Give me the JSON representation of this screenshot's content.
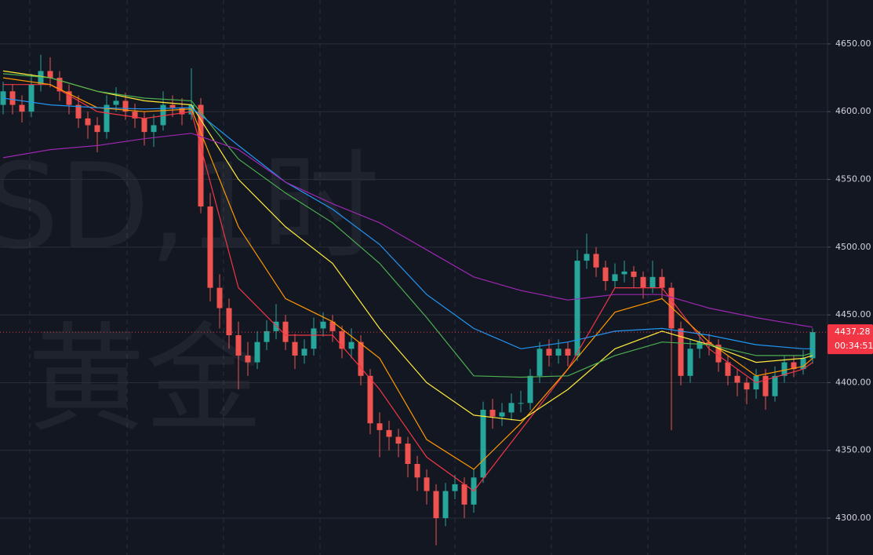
{
  "chart_data": {
    "type": "candlestick",
    "watermark": [
      "SD,1时",
      "黄金"
    ],
    "ylim": [
      4272.8,
      4682.4
    ],
    "yticks": [
      {
        "value": 4650,
        "label": "4650.00"
      },
      {
        "value": 4600,
        "label": "4600.00"
      },
      {
        "value": 4550,
        "label": "4550.00"
      },
      {
        "value": 4500,
        "label": "4500.00"
      },
      {
        "value": 4450,
        "label": "4450.00"
      },
      {
        "value": 4400,
        "label": "4400.00"
      },
      {
        "value": 4350,
        "label": "4350.00"
      },
      {
        "value": 4300,
        "label": "4300.00"
      }
    ],
    "grid": true,
    "up_color": "#26a69a",
    "down_color": "#ef5350",
    "open": [
      4605,
      4615,
      4605,
      4600,
      4620,
      4630,
      4625,
      4615,
      4605,
      4595,
      4590,
      4585,
      4605,
      4608,
      4600,
      4595,
      4585,
      4590,
      4605,
      4603,
      4598,
      4605,
      4530,
      4470,
      4455,
      4435,
      4420,
      4415,
      4430,
      4438,
      4445,
      4430,
      4420,
      4425,
      4440,
      4445,
      4438,
      4425,
      4430,
      4405,
      4370,
      4365,
      4360,
      4355,
      4340,
      4330,
      4320,
      4300,
      4320,
      4325,
      4310,
      4330,
      4380,
      4375,
      4378,
      4385,
      4385,
      4405,
      4425,
      4420,
      4425,
      4420,
      4490,
      4495,
      4485,
      4475,
      4480,
      4482,
      4478,
      4470,
      4478,
      4470,
      4440,
      4405,
      4425,
      4430,
      4428,
      4415,
      4405,
      4400,
      4395,
      4405,
      4390,
      4405,
      4415,
      4410,
      4418
    ],
    "high": [
      4622,
      4620,
      4612,
      4628,
      4642,
      4640,
      4630,
      4620,
      4612,
      4600,
      4596,
      4612,
      4618,
      4614,
      4606,
      4600,
      4598,
      4615,
      4612,
      4610,
      4632,
      4610,
      4540,
      4480,
      4462,
      4445,
      4430,
      4438,
      4446,
      4458,
      4450,
      4436,
      4432,
      4448,
      4452,
      4450,
      4442,
      4440,
      4435,
      4410,
      4378,
      4372,
      4366,
      4360,
      4346,
      4336,
      4325,
      4326,
      4332,
      4330,
      4336,
      4386,
      4388,
      4385,
      4392,
      4394,
      4410,
      4430,
      4432,
      4432,
      4430,
      4498,
      4510,
      4500,
      4490,
      4488,
      4490,
      4486,
      4482,
      4490,
      4484,
      4474,
      4445,
      4432,
      4438,
      4436,
      4432,
      4420,
      4410,
      4404,
      4410,
      4410,
      4412,
      4420,
      4420,
      4424,
      4440
    ],
    "low": [
      4598,
      4598,
      4592,
      4596,
      4615,
      4618,
      4608,
      4598,
      4588,
      4580,
      4570,
      4580,
      4600,
      4594,
      4588,
      4575,
      4574,
      4586,
      4596,
      4590,
      4594,
      4525,
      4460,
      4440,
      4425,
      4395,
      4405,
      4410,
      4424,
      4432,
      4424,
      4410,
      4414,
      4420,
      4434,
      4430,
      4418,
      4418,
      4398,
      4362,
      4345,
      4350,
      4345,
      4330,
      4320,
      4310,
      4280,
      4294,
      4314,
      4300,
      4304,
      4326,
      4366,
      4368,
      4372,
      4378,
      4380,
      4400,
      4412,
      4414,
      4412,
      4416,
      4484,
      4478,
      4468,
      4470,
      4474,
      4470,
      4462,
      4466,
      4462,
      4365,
      4398,
      4400,
      4418,
      4420,
      4408,
      4398,
      4390,
      4384,
      4388,
      4380,
      4386,
      4400,
      4404,
      4406,
      4414
    ],
    "close": [
      4615,
      4605,
      4600,
      4620,
      4630,
      4625,
      4615,
      4605,
      4595,
      4590,
      4585,
      4605,
      4608,
      4600,
      4595,
      4585,
      4590,
      4605,
      4603,
      4598,
      4605,
      4530,
      4470,
      4455,
      4435,
      4420,
      4415,
      4430,
      4438,
      4445,
      4430,
      4420,
      4425,
      4440,
      4445,
      4438,
      4425,
      4430,
      4405,
      4370,
      4365,
      4360,
      4355,
      4340,
      4330,
      4320,
      4300,
      4320,
      4325,
      4310,
      4330,
      4380,
      4375,
      4378,
      4385,
      4385,
      4405,
      4425,
      4420,
      4425,
      4420,
      4490,
      4495,
      4485,
      4475,
      4480,
      4482,
      4478,
      4470,
      4478,
      4470,
      4440,
      4405,
      4425,
      4430,
      4428,
      4415,
      4405,
      4400,
      4395,
      4405,
      4390,
      4405,
      4415,
      4410,
      4418,
      4437.28
    ],
    "series": [
      {
        "color": "#f23645",
        "x": [
          0,
          5,
          10,
          15,
          20,
          25,
          30,
          35,
          40,
          45,
          50,
          55,
          60,
          65,
          70,
          75,
          80,
          85,
          86
        ],
        "values": [
          4620,
          4620,
          4600,
          4595,
          4600,
          4470,
          4435,
          4435,
          4395,
          4345,
          4320,
          4365,
          4410,
          4470,
          4470,
          4425,
          4400,
          4410,
          4415
        ]
      },
      {
        "color": "#ff9800",
        "x": [
          0,
          5,
          10,
          15,
          20,
          25,
          30,
          35,
          40,
          45,
          50,
          55,
          60,
          65,
          70,
          75,
          80,
          85,
          86
        ],
        "values": [
          4625,
          4620,
          4603,
          4600,
          4602,
          4515,
          4462,
          4445,
          4418,
          4358,
          4336,
          4370,
          4410,
          4452,
          4462,
          4430,
          4405,
          4412,
          4418
        ]
      },
      {
        "color": "#ffeb3b",
        "x": [
          0,
          5,
          10,
          15,
          20,
          25,
          30,
          35,
          40,
          45,
          50,
          55,
          60,
          65,
          70,
          75,
          80,
          85,
          86
        ],
        "values": [
          4630,
          4625,
          4615,
          4608,
          4605,
          4550,
          4515,
          4488,
          4440,
          4400,
          4376,
          4372,
          4395,
          4425,
          4438,
          4428,
          4415,
          4418,
          4420
        ]
      },
      {
        "color": "#4caf50",
        "x": [
          0,
          5,
          10,
          15,
          20,
          25,
          30,
          35,
          40,
          45,
          50,
          55,
          60,
          65,
          70,
          75,
          80,
          85,
          86
        ],
        "values": [
          4628,
          4625,
          4615,
          4610,
          4608,
          4565,
          4540,
          4518,
          4488,
          4448,
          4405,
          4404,
          4405,
          4420,
          4430,
          4428,
          4420,
          4420,
          4422
        ]
      },
      {
        "color": "#2196f3",
        "x": [
          0,
          5,
          10,
          15,
          20,
          25,
          30,
          35,
          40,
          45,
          50,
          55,
          60,
          65,
          70,
          75,
          80,
          85,
          86
        ],
        "values": [
          4610,
          4605,
          4603,
          4602,
          4603,
          4575,
          4548,
          4528,
          4502,
          4465,
          4440,
          4425,
          4430,
          4438,
          4440,
          4435,
          4428,
          4425,
          4425
        ]
      },
      {
        "color": "#9c27b0",
        "x": [
          0,
          5,
          10,
          15,
          20,
          25,
          30,
          35,
          40,
          45,
          50,
          55,
          60,
          65,
          70,
          75,
          80,
          85,
          86
        ],
        "values": [
          4566,
          4572,
          4575,
          4580,
          4584,
          4572,
          4548,
          4532,
          4518,
          4498,
          4478,
          4468,
          4461,
          4465,
          4465,
          4455,
          4448,
          4442,
          4441
        ]
      }
    ],
    "last_price": {
      "value": 4437.28,
      "label": "4437.28"
    },
    "countdown": "00:34:51"
  }
}
